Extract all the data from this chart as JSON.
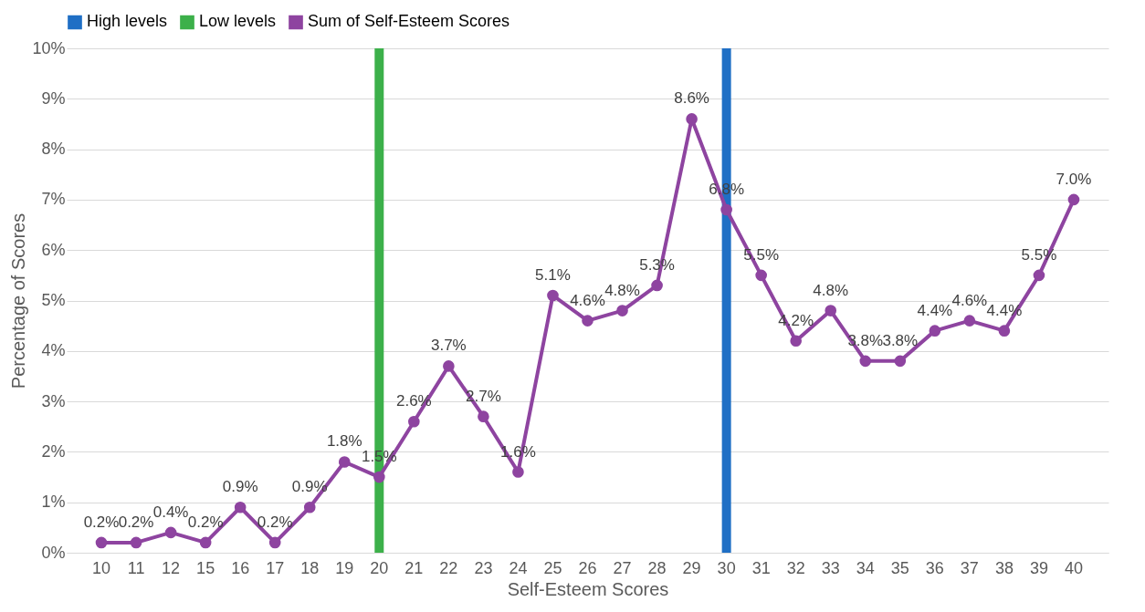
{
  "chart_data": {
    "type": "bar",
    "xlabel": "Self-Esteem Scores",
    "ylabel": "Percentage of Scores",
    "categories": [
      "10",
      "11",
      "12",
      "15",
      "16",
      "17",
      "18",
      "19",
      "20",
      "21",
      "22",
      "23",
      "24",
      "25",
      "26",
      "27",
      "28",
      "29",
      "30",
      "31",
      "32",
      "33",
      "34",
      "35",
      "36",
      "37",
      "38",
      "39",
      "40"
    ],
    "series": [
      {
        "name": "High levels",
        "color": "#1f6fc5",
        "values": [
          null,
          null,
          null,
          null,
          null,
          null,
          null,
          null,
          null,
          null,
          null,
          null,
          null,
          null,
          null,
          null,
          null,
          null,
          10,
          null,
          null,
          null,
          null,
          null,
          null,
          null,
          null,
          null,
          null
        ]
      },
      {
        "name": "Low levels",
        "color": "#3cb04a",
        "values": [
          null,
          null,
          null,
          null,
          null,
          null,
          null,
          null,
          10,
          null,
          null,
          null,
          null,
          null,
          null,
          null,
          null,
          null,
          null,
          null,
          null,
          null,
          null,
          null,
          null,
          null,
          null,
          null,
          null
        ]
      },
      {
        "name": "Sum of Self-Esteem Scores",
        "type": "line",
        "color": "#8e44a0",
        "marker": "circle",
        "values": [
          0.2,
          0.2,
          0.4,
          0.2,
          0.9,
          0.2,
          0.9,
          1.8,
          1.5,
          2.6,
          3.7,
          2.7,
          1.6,
          5.1,
          4.6,
          4.8,
          5.3,
          8.6,
          6.8,
          5.5,
          4.2,
          4.8,
          3.8,
          3.8,
          4.4,
          4.6,
          4.4,
          5.5,
          7.0
        ],
        "value_labels": [
          "0.2%",
          "0.2%",
          "0.4%",
          "0.2%",
          "0.9%",
          "0.2%",
          "0.9%",
          "1.8%",
          "1.5%",
          "2.6%",
          "3.7%",
          "2.7%",
          "1.6%",
          "5.1%",
          "4.6%",
          "4.8%",
          "5.3%",
          "8.6%",
          "6.8%",
          "5.5%",
          "4.2%",
          "4.8%",
          "3.8%",
          "3.8%",
          "4.4%",
          "4.6%",
          "4.4%",
          "5.5%",
          "7.0%"
        ]
      }
    ],
    "ylim": [
      0,
      10
    ],
    "yticks": [
      {
        "value": 0,
        "label": "0%"
      },
      {
        "value": 1,
        "label": "1%"
      },
      {
        "value": 2,
        "label": "2%"
      },
      {
        "value": 3,
        "label": "3%"
      },
      {
        "value": 4,
        "label": "4%"
      },
      {
        "value": 5,
        "label": "5%"
      },
      {
        "value": 6,
        "label": "6%"
      },
      {
        "value": 7,
        "label": "7%"
      },
      {
        "value": 8,
        "label": "8%"
      },
      {
        "value": 9,
        "label": "9%"
      },
      {
        "value": 10,
        "label": "10%"
      }
    ],
    "grid": "y",
    "legend": "top"
  }
}
